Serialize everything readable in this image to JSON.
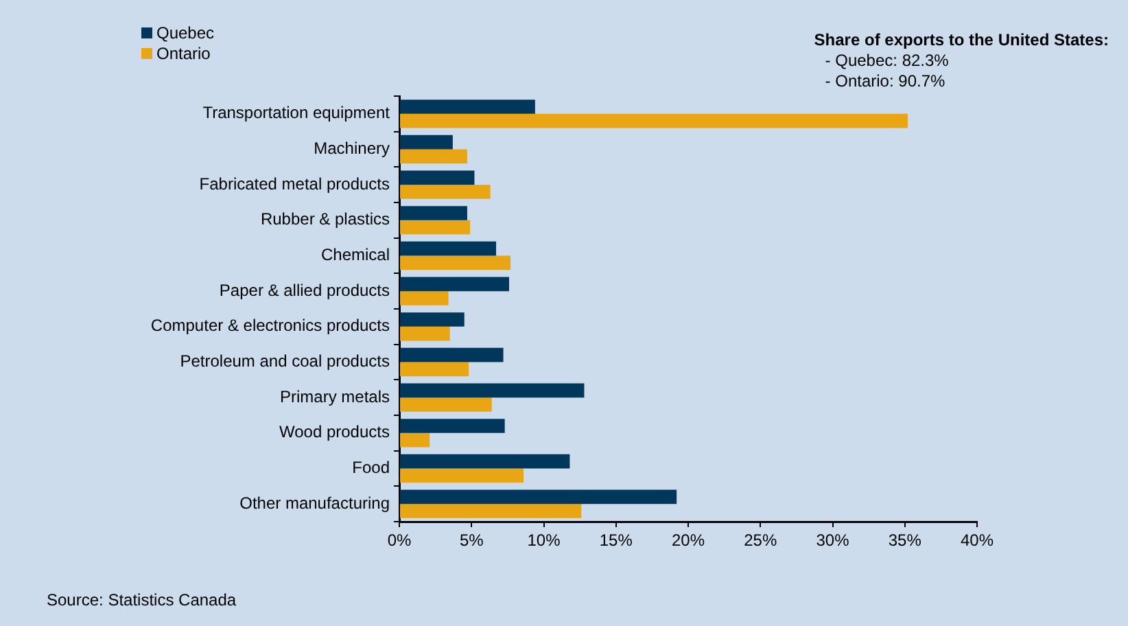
{
  "chart_data": {
    "type": "bar",
    "orientation": "horizontal",
    "categories": [
      "Transportation equipment",
      "Machinery",
      "Fabricated metal products",
      "Rubber & plastics",
      "Chemical",
      "Paper & allied products",
      "Computer & electronics products",
      "Petroleum and coal products",
      "Primary metals",
      "Wood products",
      "Food",
      "Other manufacturing"
    ],
    "series": [
      {
        "name": "Quebec",
        "color": "#00375a",
        "values": [
          9.4,
          3.7,
          5.2,
          4.7,
          6.7,
          7.6,
          4.5,
          7.2,
          12.8,
          7.3,
          11.8,
          19.2
        ]
      },
      {
        "name": "Ontario",
        "color": "#e8a615",
        "values": [
          35.2,
          4.7,
          6.3,
          4.9,
          7.7,
          3.4,
          3.5,
          4.8,
          6.4,
          2.1,
          8.6,
          12.6
        ]
      }
    ],
    "xlim": [
      0,
      40
    ],
    "xticks": [
      {
        "value": 0,
        "label": "0%"
      },
      {
        "value": 5,
        "label": "5%"
      },
      {
        "value": 10,
        "label": "10%"
      },
      {
        "value": 15,
        "label": "15%"
      },
      {
        "value": 20,
        "label": "20%"
      },
      {
        "value": 25,
        "label": "25%"
      },
      {
        "value": 30,
        "label": "30%"
      },
      {
        "value": 35,
        "label": "35%"
      },
      {
        "value": 40,
        "label": "40%"
      }
    ],
    "grid": false,
    "legend": "top left",
    "annotations": [
      "Share of exports to the United States:",
      "- Quebec: 82.3%",
      "- Ontario: 90.7%",
      "Source: Statistics Canada"
    ]
  }
}
